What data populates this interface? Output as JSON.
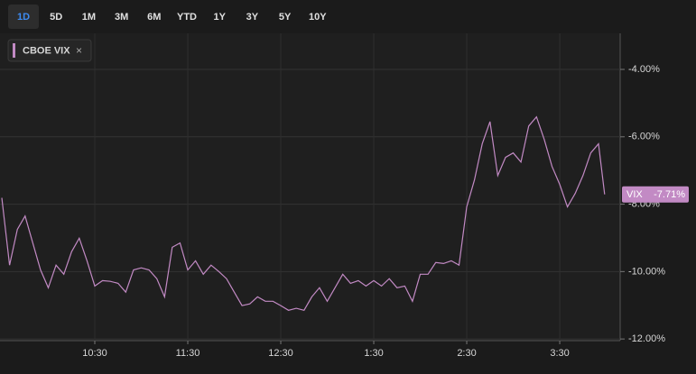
{
  "toolbar": {
    "ranges": [
      "1D",
      "5D",
      "1M",
      "3M",
      "6M",
      "YTD",
      "1Y",
      "3Y",
      "5Y",
      "10Y"
    ],
    "selected": "1D"
  },
  "chart_data": {
    "type": "line",
    "series": [
      {
        "name": "CBOE VIX",
        "color": "#c28ac4",
        "values": [
          -7.81,
          -9.81,
          -8.75,
          -8.35,
          -9.15,
          -9.95,
          -10.48,
          -9.81,
          -10.08,
          -9.41,
          -9.01,
          -9.68,
          -10.43,
          -10.27,
          -10.29,
          -10.35,
          -10.61,
          -9.95,
          -9.89,
          -9.95,
          -10.21,
          -10.75,
          -9.28,
          -9.15,
          -9.95,
          -9.68,
          -10.08,
          -9.81,
          -10.0,
          -10.21,
          -10.61,
          -11.01,
          -10.96,
          -10.75,
          -10.88,
          -10.88,
          -11.01,
          -11.15,
          -11.09,
          -11.15,
          -10.75,
          -10.48,
          -10.88,
          -10.48,
          -10.08,
          -10.35,
          -10.27,
          -10.43,
          -10.27,
          -10.43,
          -10.21,
          -10.48,
          -10.43,
          -10.88,
          -10.08,
          -10.08,
          -9.73,
          -9.76,
          -9.68,
          -9.81,
          -8.08,
          -7.28,
          -6.21,
          -5.55,
          -7.15,
          -6.61,
          -6.48,
          -6.75,
          -5.68,
          -5.41,
          -6.08,
          -6.88,
          -7.41,
          -8.08,
          -7.68,
          -7.15,
          -6.48,
          -6.21,
          -7.71
        ]
      }
    ],
    "x": [
      "9:30",
      "9:35",
      "9:40",
      "9:45",
      "9:50",
      "9:55",
      "10:00",
      "10:05",
      "10:10",
      "10:15",
      "10:20",
      "10:25",
      "10:30",
      "10:35",
      "10:40",
      "10:45",
      "10:50",
      "10:55",
      "11:00",
      "11:05",
      "11:10",
      "11:15",
      "11:20",
      "11:25",
      "11:30",
      "11:35",
      "11:40",
      "11:45",
      "11:50",
      "11:55",
      "12:00",
      "12:05",
      "12:10",
      "12:15",
      "12:20",
      "12:25",
      "12:30",
      "12:35",
      "12:40",
      "12:45",
      "12:50",
      "12:55",
      "13:00",
      "13:05",
      "13:10",
      "13:15",
      "13:20",
      "13:25",
      "13:30",
      "13:35",
      "13:40",
      "13:45",
      "13:50",
      "13:55",
      "14:00",
      "14:05",
      "14:10",
      "14:15",
      "14:20",
      "14:25",
      "14:30",
      "14:35",
      "14:40",
      "14:45",
      "14:50",
      "14:55",
      "15:00",
      "15:05",
      "15:10",
      "15:15",
      "15:20",
      "15:25",
      "15:30",
      "15:35",
      "15:40",
      "15:45",
      "15:50",
      "15:55",
      "15:59"
    ],
    "xlim": [
      "9:30",
      "16:09"
    ],
    "xticks": [
      "10:30",
      "11:30",
      "12:30",
      {
        "value": "13:30",
        "label": "1:30"
      },
      {
        "value": "14:30",
        "label": "2:30"
      },
      {
        "value": "15:30",
        "label": "3:30"
      }
    ],
    "ylim": [
      -12.05,
      -2.93
    ],
    "yticks": [
      {
        "value": -4,
        "label": "-4.00%"
      },
      {
        "value": -6,
        "label": "-6.00%"
      },
      {
        "value": -8,
        "label": "-8.00%"
      },
      {
        "value": -10,
        "label": "-10.00%"
      },
      {
        "value": -12,
        "label": "-12.00%"
      }
    ],
    "grid": true,
    "price_tag": {
      "name": "VIX",
      "value": -7.71,
      "label": "-7.71%"
    }
  }
}
